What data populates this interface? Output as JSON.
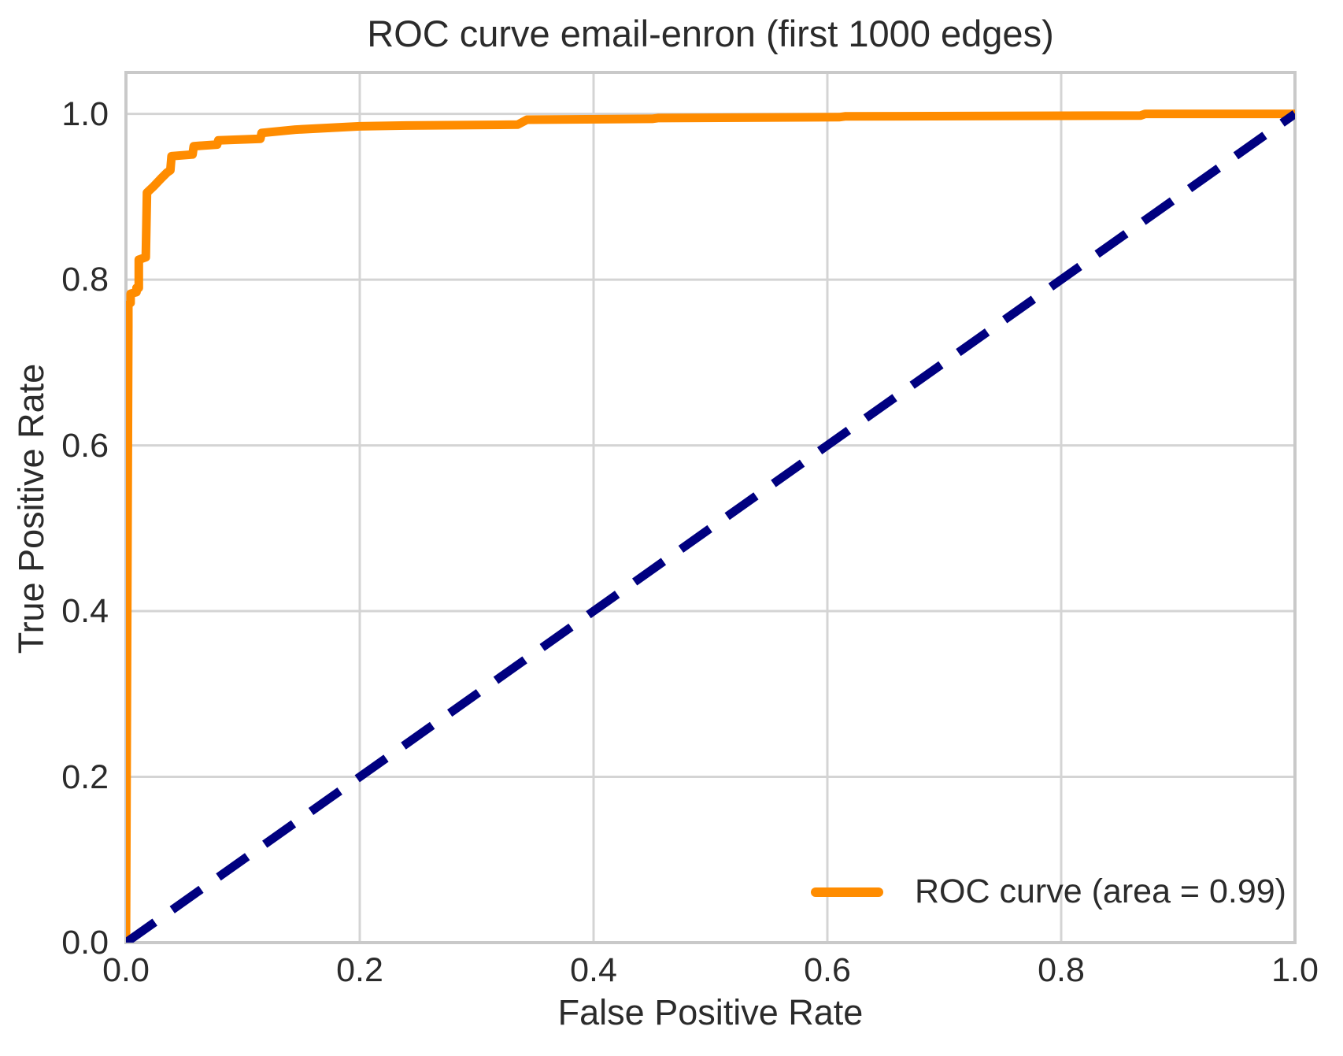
{
  "title": "ROC curve email-enron (first 1000 edges)",
  "x_axis": {
    "label": "False Positive Rate",
    "ticks": [
      "0.0",
      "0.2",
      "0.4",
      "0.6",
      "0.8",
      "1.0"
    ]
  },
  "y_axis": {
    "label": "True Positive Rate",
    "ticks": [
      "0.0",
      "0.2",
      "0.4",
      "0.6",
      "0.8",
      "1.0"
    ]
  },
  "legend": {
    "position": "lower right",
    "entries": [
      {
        "label": "ROC curve (area = 0.99)",
        "color": "#ff8c00",
        "style": "solid"
      }
    ]
  },
  "colors": {
    "roc_curve": "#ff8c00",
    "chance_line": "#000080",
    "grid": "#d4d4d4",
    "spine": "#c9c9c9",
    "text": "#2b2b2b",
    "background": "#ffffff"
  },
  "chart_data": {
    "type": "line",
    "title": "ROC curve email-enron (first 1000 edges)",
    "xlabel": "False Positive Rate",
    "ylabel": "True Positive Rate",
    "xlim": [
      0.0,
      1.0
    ],
    "ylim": [
      0.0,
      1.05
    ],
    "x_ticks": [
      0.0,
      0.2,
      0.4,
      0.6,
      0.8,
      1.0
    ],
    "y_ticks": [
      0.0,
      0.2,
      0.4,
      0.6,
      0.8,
      1.0
    ],
    "grid": true,
    "legend_position": "lower right",
    "auc": 0.99,
    "series": [
      {
        "name": "ROC curve (area = 0.99)",
        "color": "#ff8c00",
        "line_style": "solid",
        "line_width": 11,
        "points": [
          [
            0.0,
            0.0
          ],
          [
            0.002,
            0.745
          ],
          [
            0.002,
            0.77
          ],
          [
            0.004,
            0.772
          ],
          [
            0.004,
            0.783
          ],
          [
            0.009,
            0.785
          ],
          [
            0.009,
            0.79
          ],
          [
            0.011,
            0.79
          ],
          [
            0.011,
            0.824
          ],
          [
            0.017,
            0.827
          ],
          [
            0.018,
            0.905
          ],
          [
            0.024,
            0.913
          ],
          [
            0.03,
            0.922
          ],
          [
            0.035,
            0.929
          ],
          [
            0.038,
            0.932
          ],
          [
            0.039,
            0.949
          ],
          [
            0.057,
            0.951
          ],
          [
            0.058,
            0.961
          ],
          [
            0.078,
            0.963
          ],
          [
            0.079,
            0.968
          ],
          [
            0.115,
            0.97
          ],
          [
            0.116,
            0.977
          ],
          [
            0.145,
            0.981
          ],
          [
            0.2,
            0.985
          ],
          [
            0.24,
            0.986
          ],
          [
            0.335,
            0.987
          ],
          [
            0.343,
            0.993
          ],
          [
            0.45,
            0.994
          ],
          [
            0.455,
            0.995
          ],
          [
            0.61,
            0.996
          ],
          [
            0.615,
            0.997
          ],
          [
            0.868,
            0.998
          ],
          [
            0.872,
            1.0
          ],
          [
            1.0,
            1.0
          ]
        ]
      },
      {
        "name": "chance diagonal",
        "color": "#000080",
        "line_style": "dashed",
        "line_width": 11,
        "points": [
          [
            0.0,
            0.0
          ],
          [
            1.0,
            1.0
          ]
        ]
      }
    ]
  }
}
